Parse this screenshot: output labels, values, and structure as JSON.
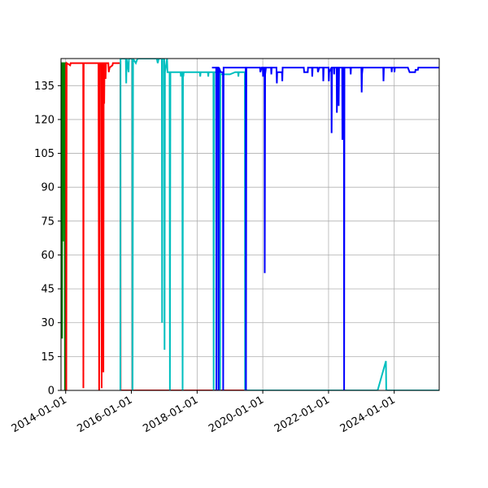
{
  "chart_data": {
    "type": "line",
    "title": "",
    "xlabel": "",
    "ylabel": "",
    "x_axis_type": "date",
    "xlim": [
      "2013-11-10",
      "2025-05-15"
    ],
    "ylim": [
      0,
      147
    ],
    "grid": true,
    "y_ticks": [
      0,
      15,
      30,
      45,
      60,
      75,
      90,
      105,
      120,
      135
    ],
    "x_ticks": [
      "2014-01-01",
      "2016-01-01",
      "2018-01-01",
      "2020-01-01",
      "2022-01-01",
      "2024-01-01"
    ],
    "series": [
      {
        "color": "#008000",
        "points": [
          [
            "2013-11-20",
            145
          ],
          [
            "2013-11-22",
            23
          ],
          [
            "2013-11-24",
            145
          ],
          [
            "2013-12-01",
            145
          ],
          [
            "2013-12-03",
            66
          ],
          [
            "2013-12-05",
            145
          ],
          [
            "2013-12-10",
            125
          ],
          [
            "2013-12-14",
            145
          ],
          [
            "2013-12-20",
            145
          ],
          [
            "2013-12-24",
            0
          ],
          [
            "2013-12-28",
            145
          ],
          [
            "2014-01-05",
            145
          ]
        ]
      },
      {
        "color": "#ff0000",
        "points": [
          [
            "2014-01-05",
            145
          ],
          [
            "2014-01-08",
            0
          ],
          [
            "2014-01-12",
            145
          ],
          [
            "2014-02-20",
            144
          ],
          [
            "2014-02-25",
            145
          ],
          [
            "2014-06-01",
            145
          ],
          [
            "2014-07-15",
            145
          ],
          [
            "2014-07-17",
            1
          ],
          [
            "2014-07-20",
            145
          ],
          [
            "2015-01-01",
            145
          ],
          [
            "2015-01-08",
            0
          ],
          [
            "2015-01-14",
            145
          ],
          [
            "2015-02-01",
            145
          ],
          [
            "2015-02-05",
            1
          ],
          [
            "2015-02-09",
            145
          ],
          [
            "2015-02-20",
            145
          ],
          [
            "2015-02-24",
            8
          ],
          [
            "2015-02-28",
            145
          ],
          [
            "2015-03-05",
            127
          ],
          [
            "2015-03-09",
            145
          ],
          [
            "2015-03-15",
            145
          ],
          [
            "2015-03-20",
            138
          ],
          [
            "2015-03-25",
            145
          ],
          [
            "2015-04-20",
            145
          ],
          [
            "2015-04-25",
            141
          ],
          [
            "2015-05-05",
            143
          ],
          [
            "2015-06-05",
            144
          ],
          [
            "2015-06-10",
            145
          ],
          [
            "2015-07-15",
            145
          ],
          [
            "2015-09-01",
            145
          ],
          [
            "2015-09-04",
            0
          ],
          [
            "2019-11-01",
            0
          ]
        ]
      },
      {
        "color": "#00bfbf",
        "points": [
          [
            "2015-09-01",
            0
          ],
          [
            "2015-09-03",
            147
          ],
          [
            "2015-11-01",
            147
          ],
          [
            "2015-11-05",
            136
          ],
          [
            "2015-11-09",
            147
          ],
          [
            "2015-12-01",
            141
          ],
          [
            "2015-12-05",
            147
          ],
          [
            "2016-01-12",
            147
          ],
          [
            "2016-01-15",
            0
          ],
          [
            "2016-01-20",
            147
          ],
          [
            "2016-02-20",
            145
          ],
          [
            "2016-03-10",
            147
          ],
          [
            "2016-10-10",
            147
          ],
          [
            "2016-10-20",
            145
          ],
          [
            "2016-11-01",
            147
          ],
          [
            "2016-12-05",
            147
          ],
          [
            "2016-12-08",
            30
          ],
          [
            "2016-12-12",
            147
          ],
          [
            "2017-01-01",
            147
          ],
          [
            "2017-01-04",
            18
          ],
          [
            "2017-01-08",
            141
          ],
          [
            "2017-02-01",
            147
          ],
          [
            "2017-02-05",
            141
          ],
          [
            "2017-03-01",
            141
          ],
          [
            "2017-03-05",
            0
          ],
          [
            "2017-03-10",
            141
          ],
          [
            "2017-07-01",
            141
          ],
          [
            "2017-07-05",
            139
          ],
          [
            "2017-07-09",
            141
          ],
          [
            "2017-07-20",
            141
          ],
          [
            "2017-07-24",
            0
          ],
          [
            "2017-07-28",
            141
          ],
          [
            "2017-08-01",
            139
          ],
          [
            "2017-08-05",
            141
          ],
          [
            "2018-02-01",
            141
          ],
          [
            "2018-02-05",
            139
          ],
          [
            "2018-02-09",
            141
          ],
          [
            "2018-05-01",
            141
          ],
          [
            "2018-05-05",
            139
          ],
          [
            "2018-05-09",
            141
          ],
          [
            "2018-06-01",
            141
          ],
          [
            "2018-07-01",
            141
          ],
          [
            "2018-07-04",
            0
          ],
          [
            "2018-07-08",
            141
          ],
          [
            "2018-08-01",
            141
          ],
          [
            "2018-08-04",
            0
          ],
          [
            "2018-08-08",
            141
          ],
          [
            "2018-09-10",
            141
          ],
          [
            "2018-09-13",
            0
          ],
          [
            "2018-09-17",
            140
          ],
          [
            "2019-01-01",
            140
          ],
          [
            "2019-03-01",
            141
          ],
          [
            "2019-04-01",
            141
          ],
          [
            "2019-04-05",
            139
          ],
          [
            "2019-04-09",
            141
          ],
          [
            "2019-06-01",
            141
          ],
          [
            "2019-06-15",
            141
          ],
          [
            "2019-06-18",
            0
          ],
          [
            "2019-06-22",
            140
          ],
          [
            "2019-06-28",
            0
          ],
          [
            "2023-07-01",
            0
          ],
          [
            "2023-10-01",
            13
          ],
          [
            "2023-10-04",
            0
          ],
          [
            "2025-05-15",
            0
          ]
        ]
      },
      {
        "color": "#0000ff",
        "points": [
          [
            "2018-06-15",
            143
          ],
          [
            "2018-08-01",
            143
          ],
          [
            "2018-08-04",
            0
          ],
          [
            "2018-08-08",
            143
          ],
          [
            "2018-08-25",
            143
          ],
          [
            "2018-08-28",
            0
          ],
          [
            "2018-09-01",
            143
          ],
          [
            "2018-09-20",
            141
          ],
          [
            "2018-10-15",
            141
          ],
          [
            "2018-10-18",
            0
          ],
          [
            "2018-10-22",
            143
          ],
          [
            "2019-01-01",
            143
          ],
          [
            "2019-06-01",
            143
          ],
          [
            "2019-06-25",
            143
          ],
          [
            "2019-06-28",
            0
          ],
          [
            "2019-07-02",
            143
          ],
          [
            "2019-12-01",
            143
          ],
          [
            "2019-12-05",
            141
          ],
          [
            "2019-12-20",
            143
          ],
          [
            "2020-01-01",
            143
          ],
          [
            "2020-01-04",
            139
          ],
          [
            "2020-01-08",
            143
          ],
          [
            "2020-01-20",
            143
          ],
          [
            "2020-01-23",
            52
          ],
          [
            "2020-01-27",
            140
          ],
          [
            "2020-02-05",
            143
          ],
          [
            "2020-04-01",
            143
          ],
          [
            "2020-04-05",
            140
          ],
          [
            "2020-04-09",
            143
          ],
          [
            "2020-06-01",
            143
          ],
          [
            "2020-06-05",
            136
          ],
          [
            "2020-06-09",
            141
          ],
          [
            "2020-08-01",
            141
          ],
          [
            "2020-08-05",
            137
          ],
          [
            "2020-08-09",
            143
          ],
          [
            "2021-01-01",
            143
          ],
          [
            "2021-04-01",
            143
          ],
          [
            "2021-04-05",
            141
          ],
          [
            "2021-05-15",
            141
          ],
          [
            "2021-05-18",
            143
          ],
          [
            "2021-07-01",
            143
          ],
          [
            "2021-07-04",
            139
          ],
          [
            "2021-07-08",
            143
          ],
          [
            "2021-09-01",
            143
          ],
          [
            "2021-09-05",
            141
          ],
          [
            "2021-09-20",
            143
          ],
          [
            "2021-11-01",
            143
          ],
          [
            "2021-11-04",
            137
          ],
          [
            "2021-11-08",
            143
          ],
          [
            "2022-01-01",
            143
          ],
          [
            "2022-01-04",
            137
          ],
          [
            "2022-01-08",
            141
          ],
          [
            "2022-02-01",
            143
          ],
          [
            "2022-02-04",
            114
          ],
          [
            "2022-02-08",
            143
          ],
          [
            "2022-03-01",
            143
          ],
          [
            "2022-03-04",
            140
          ],
          [
            "2022-03-08",
            143
          ],
          [
            "2022-04-01",
            143
          ],
          [
            "2022-04-04",
            123
          ],
          [
            "2022-04-08",
            143
          ],
          [
            "2022-04-20",
            143
          ],
          [
            "2022-04-24",
            126
          ],
          [
            "2022-04-28",
            143
          ],
          [
            "2022-06-01",
            143
          ],
          [
            "2022-06-04",
            111
          ],
          [
            "2022-06-08",
            143
          ],
          [
            "2022-06-20",
            143
          ],
          [
            "2022-06-23",
            0
          ],
          [
            "2022-06-27",
            143
          ],
          [
            "2022-09-01",
            143
          ],
          [
            "2022-09-04",
            140
          ],
          [
            "2022-09-08",
            143
          ],
          [
            "2023-01-01",
            143
          ],
          [
            "2023-01-04",
            132
          ],
          [
            "2023-01-08",
            140
          ],
          [
            "2023-01-15",
            143
          ],
          [
            "2023-06-01",
            143
          ],
          [
            "2023-09-01",
            143
          ],
          [
            "2023-09-04",
            137
          ],
          [
            "2023-09-08",
            143
          ],
          [
            "2023-12-01",
            143
          ],
          [
            "2023-12-04",
            141
          ],
          [
            "2023-12-08",
            143
          ],
          [
            "2024-01-01",
            143
          ],
          [
            "2024-01-04",
            141
          ],
          [
            "2024-01-08",
            143
          ],
          [
            "2024-06-01",
            143
          ],
          [
            "2024-06-20",
            141
          ],
          [
            "2024-08-20",
            141
          ],
          [
            "2024-08-25",
            142
          ],
          [
            "2024-09-20",
            142
          ],
          [
            "2024-09-25",
            143
          ],
          [
            "2025-05-15",
            143
          ]
        ]
      }
    ]
  }
}
